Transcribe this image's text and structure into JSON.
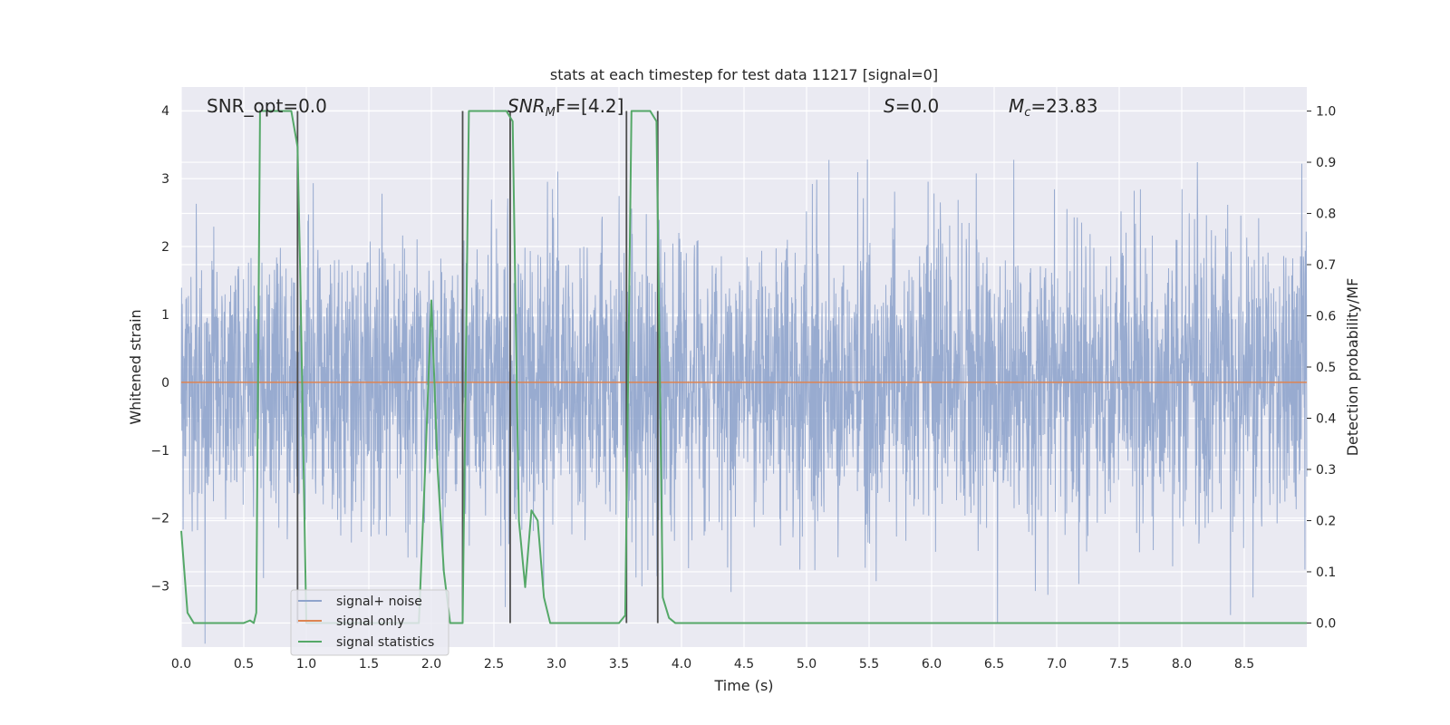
{
  "chart_data": {
    "type": "line",
    "title": "stats at each timestep for test data 11217 [signal=0]",
    "xlabel": "Time (s)",
    "ylabel": "Whitened strain",
    "ylabel_right": "Detection probability/MF",
    "xlim": [
      0,
      9
    ],
    "ylim": [
      -3.9,
      4.35
    ],
    "ylim_right": [
      -0.047,
      1.047
    ],
    "x_ticks": [
      "0.0",
      "0.5",
      "1.0",
      "1.5",
      "2.0",
      "2.5",
      "3.0",
      "3.5",
      "4.0",
      "4.5",
      "5.0",
      "5.5",
      "6.0",
      "6.5",
      "7.0",
      "7.5",
      "8.0",
      "8.5"
    ],
    "y_ticks": [
      "4",
      "3",
      "2",
      "1",
      "0",
      "−1",
      "−2",
      "−3"
    ],
    "y_ticks_right": [
      "1.0",
      "0.9",
      "0.8",
      "0.7",
      "0.6",
      "0.5",
      "0.4",
      "0.3",
      "0.2",
      "0.1",
      "0.0"
    ],
    "grid": true,
    "legend_position": "bottom-left",
    "annotations": {
      "snr_opt": "SNR_opt=0.0",
      "snr_mf_label": "SNR",
      "snr_mf_sub": "M",
      "snr_mf_rest": "F=[4.2]",
      "s_label": "S",
      "s_rest": "=0.0",
      "mc_label": "M",
      "mc_sub": "c",
      "mc_rest": "=23.83"
    },
    "series": [
      {
        "name": "signal+ noise",
        "color": "#8fa4cc",
        "noise_std": 1.05,
        "duration_s": 9.0,
        "n_samples": 3600
      },
      {
        "name": "signal only",
        "color": "#dd8452",
        "x": [
          0,
          9
        ],
        "y": [
          0,
          0
        ]
      },
      {
        "name": "signal statistics",
        "color": "#55a868",
        "axis": "right",
        "x": [
          0.0,
          0.05,
          0.1,
          0.3,
          0.5,
          0.55,
          0.58,
          0.6,
          0.63,
          0.7,
          0.88,
          0.93,
          0.95,
          1.0,
          1.9,
          1.95,
          2.0,
          2.05,
          2.1,
          2.15,
          2.25,
          2.3,
          2.35,
          2.6,
          2.65,
          2.7,
          2.75,
          2.8,
          2.85,
          2.9,
          2.95,
          3.1,
          3.5,
          3.55,
          3.6,
          3.65,
          3.75,
          3.8,
          3.85,
          3.9,
          3.95,
          9.0
        ],
        "y": [
          0.18,
          0.02,
          0.0,
          0.0,
          0.0,
          0.005,
          0.0,
          0.02,
          1.0,
          1.0,
          1.0,
          0.93,
          0.7,
          0.0,
          0.0,
          0.3,
          0.63,
          0.3,
          0.1,
          0.0,
          0.0,
          1.0,
          1.0,
          1.0,
          0.98,
          0.2,
          0.07,
          0.22,
          0.2,
          0.05,
          0.0,
          0.0,
          0.0,
          0.015,
          1.0,
          1.0,
          1.0,
          0.98,
          0.05,
          0.01,
          0.0,
          0.0
        ]
      }
    ],
    "markers": {
      "color": "#4d4d4d",
      "x": [
        0.93,
        2.25,
        2.63,
        3.56,
        3.81
      ],
      "top": 1.0,
      "bottom": 0.0
    }
  }
}
